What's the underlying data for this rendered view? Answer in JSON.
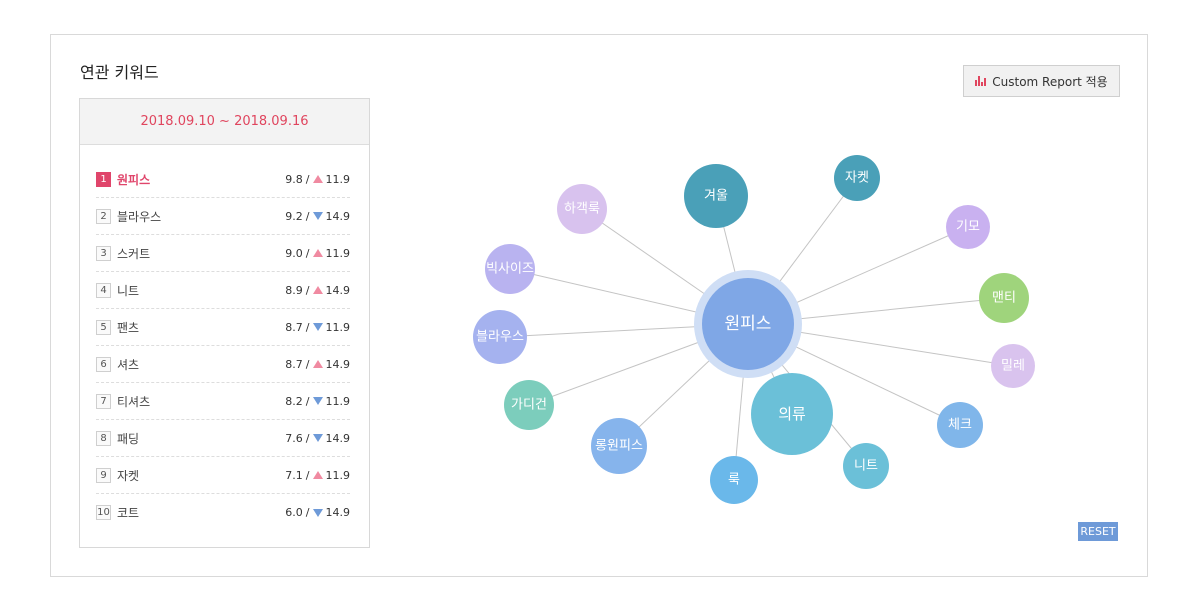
{
  "title": "연관 키워드",
  "date_range": "2018.09.10 ~ 2018.09.16",
  "report_button": "Custom Report 적용",
  "reset_button": "RESET",
  "rankings": [
    {
      "rank": "1",
      "keyword": "원피스",
      "value": "9.8",
      "trend": "up",
      "trend_value": "11.9"
    },
    {
      "rank": "2",
      "keyword": "블라우스",
      "value": "9.2",
      "trend": "down",
      "trend_value": "14.9"
    },
    {
      "rank": "3",
      "keyword": "스커트",
      "value": "9.0",
      "trend": "up",
      "trend_value": "11.9"
    },
    {
      "rank": "4",
      "keyword": "니트",
      "value": "8.9",
      "trend": "up",
      "trend_value": "14.9"
    },
    {
      "rank": "5",
      "keyword": "팬츠",
      "value": "8.7",
      "trend": "down",
      "trend_value": "11.9"
    },
    {
      "rank": "6",
      "keyword": "셔츠",
      "value": "8.7",
      "trend": "up",
      "trend_value": "14.9"
    },
    {
      "rank": "7",
      "keyword": "티셔츠",
      "value": "8.2",
      "trend": "down",
      "trend_value": "11.9"
    },
    {
      "rank": "8",
      "keyword": "패딩",
      "value": "7.6",
      "trend": "down",
      "trend_value": "14.9"
    },
    {
      "rank": "9",
      "keyword": "자켓",
      "value": "7.1",
      "trend": "up",
      "trend_value": "11.9"
    },
    {
      "rank": "10",
      "keyword": "코트",
      "value": "6.0",
      "trend": "down",
      "trend_value": "14.9"
    }
  ],
  "colors": {
    "accent": "#e0455e",
    "up": "#f08aa1",
    "down": "#6e9ad8"
  },
  "graph": {
    "center": {
      "label": "원피스",
      "color": "#7fa7e6",
      "halo": "#cfdef5"
    },
    "nodes": [
      {
        "label": "겨울",
        "color": "#4aa0b8"
      },
      {
        "label": "자켓",
        "color": "#4aa0b8"
      },
      {
        "label": "하객룩",
        "color": "#d8c2ee"
      },
      {
        "label": "기모",
        "color": "#c9b1f0"
      },
      {
        "label": "빅사이즈",
        "color": "#b9b3f0"
      },
      {
        "label": "맨티",
        "color": "#9fd47c"
      },
      {
        "label": "블라우스",
        "color": "#a5b2ef"
      },
      {
        "label": "밀레",
        "color": "#d9c3ee"
      },
      {
        "label": "가디건",
        "color": "#7ccdbc"
      },
      {
        "label": "의류",
        "color": "#6bc0d8"
      },
      {
        "label": "체크",
        "color": "#80b6ea"
      },
      {
        "label": "롱원피스",
        "color": "#86b4ec"
      },
      {
        "label": "니트",
        "color": "#6bc0d8"
      },
      {
        "label": "룩",
        "color": "#6ab8ea"
      }
    ]
  }
}
